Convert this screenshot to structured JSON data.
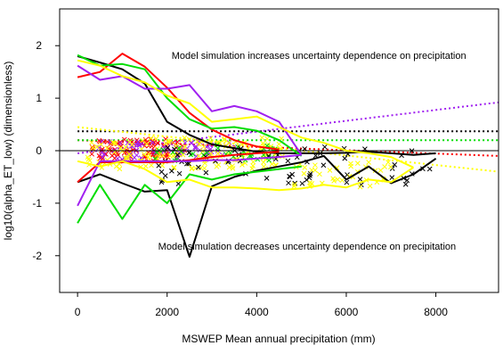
{
  "chart_data": {
    "type": "line",
    "title": "",
    "xlabel": "MSWEP Mean annual precipitation (mm)",
    "ylabel": "log10(alpha_ET_low) (dimensionless)",
    "xlim": [
      -400,
      9400
    ],
    "ylim": [
      -2.7,
      2.7
    ],
    "x_ticks": [
      0,
      2000,
      4000,
      6000,
      8000
    ],
    "x_tick_labels": [
      "0",
      "2000",
      "4000",
      "6000",
      "8000"
    ],
    "y_ticks": [
      -2,
      -1,
      0,
      1,
      2
    ],
    "y_tick_labels": [
      "-2",
      "-1",
      "0",
      "1",
      "2"
    ],
    "grid": false,
    "reference_line": {
      "y": 0,
      "color": "#000000"
    },
    "annotations": [
      {
        "text": "Model simulation increases uncertainty dependence on precipitation",
        "x": 2100,
        "y": 1.82
      },
      {
        "text": "Model simulation decreases uncertainty dependence on precipitation",
        "x": 1800,
        "y": -1.82
      }
    ],
    "series": [
      {
        "color": "#000000",
        "upper": [
          [
            0,
            1.8
          ],
          [
            500,
            1.68
          ],
          [
            1000,
            1.55
          ],
          [
            1500,
            1.28
          ],
          [
            2000,
            0.55
          ],
          [
            2500,
            0.3
          ],
          [
            3000,
            0.12
          ],
          [
            3500,
            0.05
          ],
          [
            4000,
            -0.02
          ],
          [
            4500,
            -0.05
          ],
          [
            5000,
            -0.05
          ],
          [
            5500,
            -0.05
          ],
          [
            6000,
            -0.04
          ],
          [
            6500,
            -0.02
          ],
          [
            7000,
            -0.05
          ],
          [
            7500,
            -0.08
          ],
          [
            8000,
            -0.05
          ]
        ],
        "lower": [
          [
            0,
            -0.6
          ],
          [
            500,
            -0.45
          ],
          [
            1000,
            -0.62
          ],
          [
            1500,
            -0.78
          ],
          [
            2000,
            -0.75
          ],
          [
            2500,
            -2.02
          ],
          [
            3000,
            -0.68
          ],
          [
            3500,
            -0.5
          ],
          [
            4000,
            -0.38
          ],
          [
            4500,
            -0.3
          ],
          [
            5000,
            -0.22
          ],
          [
            5500,
            -0.1
          ],
          [
            6000,
            -0.55
          ],
          [
            6500,
            -0.3
          ],
          [
            7000,
            -0.62
          ],
          [
            7500,
            -0.45
          ],
          [
            8000,
            -0.15
          ]
        ],
        "trend": [
          [
            0,
            0.37
          ],
          [
            9400,
            0.37
          ]
        ]
      },
      {
        "color": "#ff0000",
        "upper": [
          [
            0,
            1.4
          ],
          [
            500,
            1.5
          ],
          [
            1000,
            1.85
          ],
          [
            1500,
            1.6
          ],
          [
            2000,
            1.2
          ],
          [
            2500,
            0.72
          ],
          [
            3000,
            0.4
          ],
          [
            3500,
            0.2
          ],
          [
            4000,
            0.08
          ],
          [
            4500,
            0.02
          ]
        ],
        "lower": [
          [
            0,
            -0.6
          ],
          [
            500,
            -0.22
          ],
          [
            1000,
            -0.22
          ],
          [
            1500,
            -0.22
          ],
          [
            2000,
            -0.22
          ],
          [
            2500,
            -0.18
          ],
          [
            3000,
            -0.12
          ],
          [
            3500,
            -0.08
          ],
          [
            4000,
            -0.05
          ],
          [
            4500,
            -0.02
          ]
        ],
        "trend": [
          [
            0,
            0.2
          ],
          [
            9400,
            -0.1
          ]
        ]
      },
      {
        "color": "#00dd00",
        "upper": [
          [
            0,
            1.82
          ],
          [
            500,
            1.62
          ],
          [
            1000,
            1.65
          ],
          [
            1500,
            1.55
          ],
          [
            2000,
            1.0
          ],
          [
            2500,
            0.6
          ],
          [
            3000,
            0.42
          ],
          [
            3500,
            0.45
          ],
          [
            4000,
            0.38
          ],
          [
            4500,
            0.2
          ],
          [
            5000,
            -0.1
          ]
        ],
        "lower": [
          [
            0,
            -1.38
          ],
          [
            500,
            -0.65
          ],
          [
            1000,
            -1.3
          ],
          [
            1500,
            -0.65
          ],
          [
            2000,
            -1.0
          ],
          [
            2500,
            -0.45
          ],
          [
            3000,
            -0.55
          ],
          [
            3500,
            -0.45
          ],
          [
            4000,
            -0.4
          ],
          [
            4500,
            -0.35
          ],
          [
            5000,
            -0.3
          ]
        ],
        "trend": [
          [
            0,
            0.2
          ],
          [
            9400,
            0.2
          ]
        ]
      },
      {
        "color": "#a020f0",
        "upper": [
          [
            0,
            1.62
          ],
          [
            500,
            1.35
          ],
          [
            1000,
            1.42
          ],
          [
            1500,
            1.18
          ],
          [
            2000,
            1.18
          ],
          [
            2500,
            1.25
          ],
          [
            3000,
            0.75
          ],
          [
            3500,
            0.85
          ],
          [
            4000,
            0.75
          ],
          [
            4500,
            0.55
          ],
          [
            5000,
            -0.08
          ]
        ],
        "lower": [
          [
            0,
            -1.05
          ],
          [
            500,
            -0.2
          ],
          [
            1000,
            -0.2
          ],
          [
            1500,
            -0.2
          ],
          [
            2000,
            -0.2
          ],
          [
            2500,
            -0.2
          ],
          [
            3000,
            -0.18
          ],
          [
            3500,
            -0.18
          ],
          [
            4000,
            -0.15
          ],
          [
            4500,
            -0.12
          ],
          [
            5000,
            -0.08
          ]
        ],
        "trend": [
          [
            0,
            -0.05
          ],
          [
            9400,
            0.92
          ]
        ]
      },
      {
        "color": "#ffff00",
        "upper": [
          [
            0,
            1.72
          ],
          [
            500,
            1.62
          ],
          [
            1000,
            1.42
          ],
          [
            1500,
            1.3
          ],
          [
            2000,
            1.05
          ],
          [
            2500,
            0.9
          ],
          [
            3000,
            0.55
          ],
          [
            3500,
            0.6
          ],
          [
            4000,
            0.65
          ],
          [
            4500,
            0.45
          ],
          [
            5000,
            0.25
          ],
          [
            5500,
            0.15
          ],
          [
            6000,
            0.0
          ],
          [
            6500,
            -0.05
          ],
          [
            7000,
            -0.12
          ],
          [
            7500,
            -0.32
          ]
        ],
        "lower": [
          [
            0,
            -0.2
          ],
          [
            500,
            -0.3
          ],
          [
            1000,
            -0.2
          ],
          [
            1500,
            -0.35
          ],
          [
            2000,
            -0.6
          ],
          [
            2500,
            -0.55
          ],
          [
            3000,
            -0.7
          ],
          [
            3500,
            -0.7
          ],
          [
            4000,
            -0.72
          ],
          [
            4500,
            -0.75
          ],
          [
            5000,
            -0.72
          ],
          [
            5500,
            -0.65
          ],
          [
            6000,
            -0.7
          ],
          [
            6500,
            -0.55
          ],
          [
            7000,
            -0.6
          ],
          [
            7500,
            -0.32
          ]
        ],
        "trend": [
          [
            0,
            0.45
          ],
          [
            9400,
            -0.4
          ]
        ]
      }
    ],
    "scatter_clusters": [
      {
        "color": "#ff0000",
        "x_range": [
          300,
          2400
        ],
        "y_range": [
          -0.2,
          0.22
        ],
        "count": 90,
        "marker": "x"
      },
      {
        "color": "#a020f0",
        "x_range": [
          400,
          3600
        ],
        "y_range": [
          -0.18,
          0.18
        ],
        "count": 70,
        "marker": "x"
      },
      {
        "color": "#ffff00",
        "x_range": [
          200,
          4600
        ],
        "y_range": [
          -0.35,
          0.25
        ],
        "count": 150,
        "marker": "x"
      },
      {
        "color": "#00dd00",
        "x_range": [
          1500,
          4500
        ],
        "y_range": [
          -0.2,
          0.12
        ],
        "count": 35,
        "marker": "x"
      },
      {
        "color": "#000000",
        "x_range": [
          1800,
          8000
        ],
        "y_range": [
          -0.65,
          0.12
        ],
        "count": 70,
        "marker": "x"
      },
      {
        "color": "#ffff00",
        "x_range": [
          4800,
          7000
        ],
        "y_range": [
          -0.7,
          -0.2
        ],
        "count": 40,
        "marker": "x"
      }
    ]
  }
}
